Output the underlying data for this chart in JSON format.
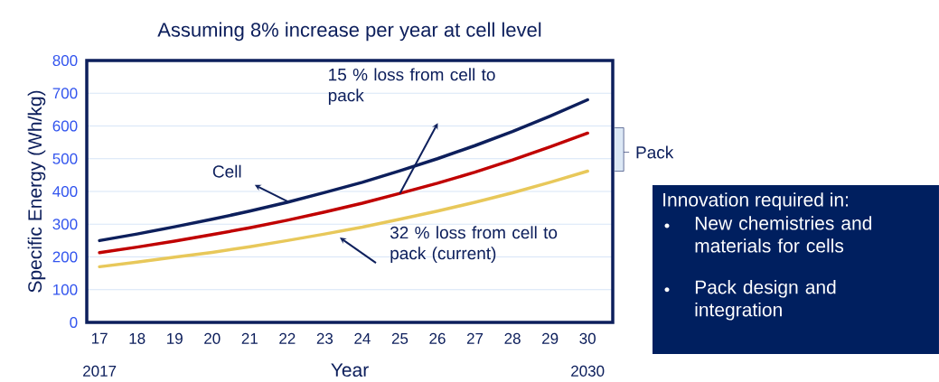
{
  "chart_data": {
    "type": "line",
    "title": "Assuming 8% increase per year at cell level",
    "xlabel": "Year",
    "ylabel": "Specific Energy (Wh/kg)",
    "x": [
      2017,
      2018,
      2019,
      2020,
      2021,
      2022,
      2023,
      2024,
      2025,
      2026,
      2027,
      2028,
      2029,
      2030
    ],
    "series": [
      {
        "color": "#0d1f5c",
        "values": [
          250,
          270,
          292,
          315,
          340,
          367,
          397,
          428,
          463,
          500,
          540,
          583,
          630,
          680
        ]
      },
      {
        "color": "#c00000",
        "values": [
          213,
          230,
          248,
          268,
          289,
          312,
          337,
          364,
          394,
          425,
          459,
          496,
          536,
          578
        ]
      },
      {
        "color": "#e8c85a",
        "values": [
          170,
          184,
          199,
          214,
          231,
          250,
          270,
          291,
          315,
          340,
          367,
          396,
          428,
          462
        ]
      }
    ],
    "xlim": [
      2016.66,
      2030.67
    ],
    "ylim": [
      0,
      800
    ],
    "xticks": [
      {
        "value": 2017,
        "label": "17"
      },
      {
        "value": 2018,
        "label": "18"
      },
      {
        "value": 2019,
        "label": "19"
      },
      {
        "value": 2020,
        "label": "20"
      },
      {
        "value": 2021,
        "label": "21"
      },
      {
        "value": 2022,
        "label": "22"
      },
      {
        "value": 2023,
        "label": "23"
      },
      {
        "value": 2024,
        "label": "24"
      },
      {
        "value": 2025,
        "label": "25"
      },
      {
        "value": 2026,
        "label": "26"
      },
      {
        "value": 2027,
        "label": "27"
      },
      {
        "value": 2028,
        "label": "28"
      },
      {
        "value": 2029,
        "label": "29"
      },
      {
        "value": 2030,
        "label": "30"
      }
    ],
    "yticks": [
      0,
      100,
      200,
      300,
      400,
      500,
      600,
      700,
      800
    ],
    "grid": "y",
    "marker": "none",
    "line_style": "solid",
    "legend": false,
    "annotations": [
      {
        "text": "Cell",
        "x": 2022,
        "y": 370
      },
      {
        "text": "15 % loss from cell to pack",
        "x": 2025,
        "y": 394
      },
      {
        "text": "32 % loss from cell to pack (current)",
        "x": 2023.4,
        "y": 270
      },
      "2017",
      "2030",
      "Pack",
      "Innovation required in:",
      "New chemistries and materials for cells",
      "Pack design and integration"
    ]
  }
}
